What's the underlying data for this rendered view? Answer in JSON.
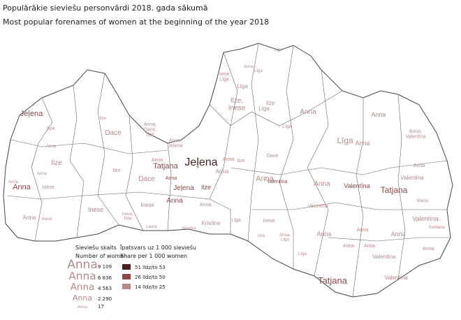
{
  "title": "Populārākie sieviešu personvārdi 2018. gada sākumā",
  "subtitle": "Most popular forenames of women at the beginning of the year 2018",
  "size_legend": {
    "title_lv": "Sieviešu skaits",
    "title_en": "Number of women",
    "sample": "Anna",
    "counts": [
      9109,
      6836,
      4563,
      2290,
      17
    ],
    "count_labels": [
      "9 109",
      "6 836",
      "4 563",
      "2 290",
      "17"
    ]
  },
  "share_legend": {
    "title_lv": "Īpatsvars uz 1 000 sieviešu",
    "title_en": "Share per 1 000 women",
    "classes": [
      {
        "label": "51 līdz/to 53",
        "color": "#4a1f1f"
      },
      {
        "label": "26 līdz/to 50",
        "color": "#8a4a4a"
      },
      {
        "label": "14 līdz/to 25",
        "color": "#b58a8a"
      }
    ]
  },
  "labels": [
    {
      "lines": [
        "Jeļena"
      ],
      "share": 1
    },
    {
      "lines": [
        "Ilze"
      ],
      "share": 2
    },
    {
      "lines": [
        "Ilze"
      ],
      "share": 2
    },
    {
      "lines": [
        "Dace"
      ],
      "share": 2
    },
    {
      "lines": [
        "Anna"
      ],
      "share": 2
    },
    {
      "lines": [
        "Ilze"
      ],
      "share": 2
    },
    {
      "lines": [
        "Anna,",
        "Dace,",
        "Ilze"
      ],
      "share": 2
    },
    {
      "lines": [
        "Anna,",
        "Jeļena"
      ],
      "share": 2
    },
    {
      "lines": [
        "Ilze"
      ],
      "share": 2
    },
    {
      "lines": [
        "Tatjana"
      ],
      "share": 1
    },
    {
      "lines": [
        "Jeļena"
      ],
      "share": 0
    },
    {
      "lines": [
        "Anna"
      ],
      "share": 2
    },
    {
      "lines": [
        "Inese"
      ],
      "share": 2
    },
    {
      "lines": [
        "Anna"
      ],
      "share": 1
    },
    {
      "lines": [
        "Dace"
      ],
      "share": 2
    },
    {
      "lines": [
        "Anna"
      ],
      "share": 1
    },
    {
      "lines": [
        "Jeļena"
      ],
      "share": 1
    },
    {
      "lines": [
        "Ilze"
      ],
      "share": 1
    },
    {
      "lines": [
        "Anna"
      ],
      "share": 1
    },
    {
      "lines": [
        "Inese"
      ],
      "share": 2
    },
    {
      "lines": [
        "Inese"
      ],
      "share": 2
    },
    {
      "lines": [
        "Anna"
      ],
      "share": 2
    },
    {
      "lines": [
        "Inese"
      ],
      "share": 2
    },
    {
      "lines": [
        "Inese,",
        "Rita"
      ],
      "share": 2
    },
    {
      "lines": [
        "Laura"
      ],
      "share": 2
    },
    {
      "lines": [
        "Kristīne"
      ],
      "share": 2
    },
    {
      "lines": [
        "Valentīna"
      ],
      "share": 2
    },
    {
      "lines": [
        "Anna"
      ],
      "share": 2
    },
    {
      "lines": [
        "Līga"
      ],
      "share": 2
    },
    {
      "lines": [
        "Anna"
      ],
      "share": 2
    },
    {
      "lines": [
        "Inese"
      ],
      "share": 2
    },
    {
      "lines": [
        "Anna,",
        "Līga"
      ],
      "share": 2
    },
    {
      "lines": [
        "Valentīna"
      ],
      "share": 1
    },
    {
      "lines": [
        "Anna"
      ],
      "share": 2
    },
    {
      "lines": [
        "Līga"
      ],
      "share": 2
    },
    {
      "lines": [
        "Dace"
      ],
      "share": 2
    },
    {
      "lines": [
        "Līga"
      ],
      "share": 2
    },
    {
      "lines": [
        "Ilze,",
        "Inese"
      ],
      "share": 2
    },
    {
      "lines": [
        "Inese,",
        "Līga"
      ],
      "share": 2
    },
    {
      "lines": [
        "Līga"
      ],
      "share": 2
    },
    {
      "lines": [
        "Līga"
      ],
      "share": 2
    },
    {
      "lines": [
        "Līga"
      ],
      "share": 2
    },
    {
      "lines": [
        "Anna"
      ],
      "share": 2
    },
    {
      "lines": [
        "Ilze"
      ],
      "share": 2
    },
    {
      "lines": [
        "Anna"
      ],
      "share": 2
    },
    {
      "lines": [
        "Līga"
      ],
      "share": 2
    },
    {
      "lines": [
        "Anna"
      ],
      "share": 2
    },
    {
      "lines": [
        "Anna"
      ],
      "share": 2
    },
    {
      "lines": [
        "Anna,",
        "Valentīna"
      ],
      "share": 2
    },
    {
      "lines": [
        "Tatjana"
      ],
      "share": 1
    },
    {
      "lines": [
        "Valentīna"
      ],
      "share": 1
    },
    {
      "lines": [
        "Valentīna"
      ],
      "share": 2
    },
    {
      "lines": [
        "Valentīna"
      ],
      "share": 2
    },
    {
      "lines": [
        "Marija"
      ],
      "share": 2
    },
    {
      "lines": [
        "Svetlana"
      ],
      "share": 2
    },
    {
      "lines": [
        "Valentīna"
      ],
      "share": 2
    },
    {
      "lines": [
        "Tatjana"
      ],
      "share": 1
    },
    {
      "lines": [
        "Valentīna"
      ],
      "share": 2
    },
    {
      "lines": [
        "Anna"
      ],
      "share": 2
    },
    {
      "lines": [
        "Anna"
      ],
      "share": 2
    },
    {
      "lines": [
        "Anna"
      ],
      "share": 2
    },
    {
      "lines": [
        "Anna"
      ],
      "share": 2
    },
    {
      "lines": [
        "Anna"
      ],
      "share": 2
    },
    {
      "lines": [
        "Anna"
      ],
      "share": 2
    },
    {
      "lines": [
        "Anna"
      ],
      "share": 2
    },
    {
      "lines": [
        "Valentīna"
      ],
      "share": 2
    },
    {
      "lines": [
        "Inta"
      ],
      "share": 2
    },
    {
      "lines": [
        "Līga"
      ],
      "share": 2
    },
    {
      "lines": [
        "Anna"
      ],
      "share": 2
    },
    {
      "lines": [
        "Anna"
      ],
      "share": 2
    },
    {
      "lines": [
        "Ilze"
      ],
      "share": 2
    },
    {
      "lines": [
        "Anna"
      ],
      "share": 2
    },
    {
      "lines": [
        "Anna"
      ],
      "share": 2
    }
  ]
}
